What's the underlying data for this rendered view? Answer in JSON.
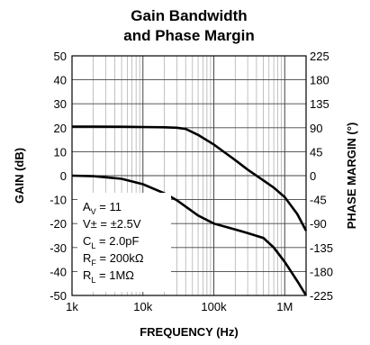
{
  "chart_data": {
    "type": "line",
    "title_line1": "Gain Bandwidth",
    "title_line2": "and Phase Margin",
    "xlabel": "FREQUENCY (Hz)",
    "ylabel": "GAIN (dB)",
    "y2label": "PHASE MARGIN (°)",
    "x_scale": "log",
    "xlim": [
      1000,
      2000000
    ],
    "ylim": [
      -50,
      50
    ],
    "y2lim": [
      -225,
      225
    ],
    "x_tick_values": [
      1000,
      10000,
      100000,
      1000000
    ],
    "x_ticks": [
      "1k",
      "10k",
      "100k",
      "1M"
    ],
    "y_ticks": [
      "50",
      "40",
      "30",
      "20",
      "10",
      "0",
      "-10",
      "-20",
      "-30",
      "-40",
      "-50"
    ],
    "y2_ticks": [
      "225",
      "180",
      "135",
      "90",
      "45",
      "0",
      "-45",
      "-90",
      "-135",
      "-180",
      "-225"
    ],
    "grid": true,
    "series": [
      {
        "x": [
          1000,
          2000,
          5000,
          10000,
          20000,
          30000,
          40000,
          60000,
          100000,
          200000,
          300000,
          500000,
          700000,
          1000000,
          1500000,
          2000000
        ],
        "y": [
          20.5,
          20.5,
          20.4,
          20.3,
          20.2,
          20.0,
          19.5,
          17,
          13,
          6.5,
          2.5,
          -2,
          -5,
          -9,
          -16,
          -23
        ]
      },
      {
        "axis": "y2",
        "x": [
          1000,
          2000,
          5000,
          10000,
          20000,
          30000,
          40000,
          60000,
          100000,
          200000,
          300000,
          500000,
          700000,
          1000000,
          1500000,
          2000000
        ],
        "y": [
          0,
          -1,
          -6,
          -16,
          -33,
          -46,
          -58,
          -75,
          -90,
          -101,
          -108,
          -117,
          -135,
          -162,
          -198,
          -225
        ]
      }
    ],
    "annotation": {
      "av_main": "A",
      "av_sub": "V",
      "av_rest": " = 11",
      "vs": "V± = ±2.5V",
      "cl_main": "C",
      "cl_sub": "L",
      "cl_rest": " = 2.0pF",
      "rf_main": "R",
      "rf_sub": "F",
      "rf_rest": " = 200kΩ",
      "rl_main": "R",
      "rl_sub": "L",
      "rl_rest": " = 1MΩ"
    }
  }
}
